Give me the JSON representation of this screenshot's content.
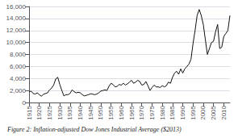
{
  "chart_data": {
    "type": "line",
    "title": "Figure 2: Inflation-adjusted Dow Jones Industrial Average ($2013)",
    "x": [
      1915,
      1916,
      1917,
      1918,
      1919,
      1920,
      1921,
      1922,
      1923,
      1924,
      1925,
      1926,
      1927,
      1928,
      1929,
      1930,
      1931,
      1932,
      1933,
      1934,
      1935,
      1936,
      1937,
      1938,
      1939,
      1940,
      1941,
      1942,
      1943,
      1944,
      1945,
      1946,
      1947,
      1948,
      1949,
      1950,
      1951,
      1952,
      1953,
      1954,
      1955,
      1956,
      1957,
      1958,
      1959,
      1960,
      1961,
      1962,
      1963,
      1964,
      1965,
      1966,
      1967,
      1968,
      1969,
      1970,
      1971,
      1972,
      1973,
      1974,
      1975,
      1976,
      1977,
      1978,
      1979,
      1980,
      1981,
      1982,
      1983,
      1984,
      1985,
      1986,
      1987,
      1988,
      1989,
      1990,
      1991,
      1992,
      1993,
      1994,
      1995,
      1996,
      1997,
      1998,
      1999,
      2000,
      2001,
      2002,
      2003,
      2004,
      2005,
      2006,
      2007,
      2008,
      2009,
      2010,
      2011,
      2012,
      2013
    ],
    "values": [
      1750,
      1900,
      1500,
      1400,
      1600,
      1300,
      1050,
      1350,
      1500,
      1600,
      2100,
      2400,
      2900,
      3900,
      4200,
      3000,
      2000,
      1100,
      1300,
      1300,
      1500,
      2100,
      1800,
      1600,
      1700,
      1600,
      1300,
      1100,
      1200,
      1300,
      1450,
      1400,
      1300,
      1400,
      1600,
      1900,
      2000,
      2100,
      2000,
      2700,
      3200,
      3000,
      2600,
      2700,
      3000,
      2900,
      3200,
      2900,
      3100,
      3400,
      3700,
      3200,
      3400,
      3700,
      3500,
      2900,
      3000,
      3500,
      2800,
      2000,
      2500,
      2900,
      2600,
      2600,
      2500,
      2800,
      2600,
      2800,
      3400,
      3200,
      4200,
      4900,
      5200,
      4700,
      5600,
      4900,
      5600,
      6000,
      6400,
      7200,
      9800,
      12000,
      14500,
      15500,
      14500,
      13000,
      10500,
      8000,
      9000,
      10000,
      10200,
      11800,
      13000,
      9000,
      9200,
      11000,
      11500,
      12000,
      14500
    ],
    "color": "#111111",
    "xlim": [
      1915,
      2013
    ],
    "xticks": [
      1915,
      1920,
      1925,
      1930,
      1935,
      1940,
      1945,
      1950,
      1955,
      1960,
      1965,
      1970,
      1975,
      1980,
      1985,
      1990,
      1995,
      2000,
      2005,
      2010
    ],
    "ylim": [
      0,
      16000
    ],
    "yticks": [
      0,
      {
        "value": 2000,
        "label": "2,000"
      },
      {
        "value": 4000,
        "label": "4,000"
      },
      {
        "value": 6000,
        "label": "6,000"
      },
      {
        "value": 8000,
        "label": "8,000"
      },
      {
        "value": 10000,
        "label": "10,000"
      },
      {
        "value": 12000,
        "label": "12,000"
      },
      {
        "value": 14000,
        "label": "14,000"
      },
      {
        "value": 16000,
        "label": "16,000"
      }
    ],
    "grid": true
  }
}
